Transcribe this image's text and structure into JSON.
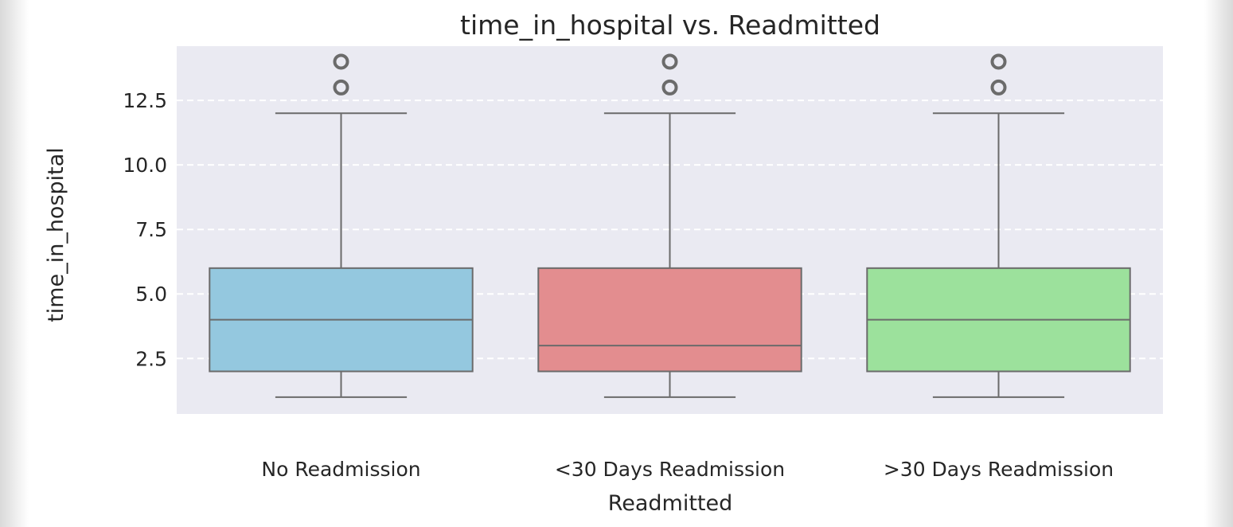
{
  "chart_data": {
    "type": "box",
    "title": "time_in_hospital vs. Readmitted",
    "xlabel": "Readmitted",
    "ylabel": "time_in_hospital",
    "ylim": [
      0.35,
      14.6
    ],
    "yticks": [
      2.5,
      5.0,
      7.5,
      10.0,
      12.5
    ],
    "ytick_labels": [
      "2.5",
      "5.0",
      "7.5",
      "10.0",
      "12.5"
    ],
    "grid": true,
    "background": "#eaeaf2",
    "categories": [
      "No Readmission",
      "<30 Days Readmission",
      ">30 Days Readmission"
    ],
    "boxes": [
      {
        "category": "No Readmission",
        "min": 1,
        "q1": 2,
        "median": 4,
        "q3": 6,
        "max": 12,
        "outliers": [
          13,
          14
        ],
        "color": "#94c8df"
      },
      {
        "category": "<30 Days Readmission",
        "min": 1,
        "q1": 2,
        "median": 3,
        "q3": 6,
        "max": 12,
        "outliers": [
          13,
          14
        ],
        "color": "#e38d8f"
      },
      {
        "category": ">30 Days Readmission",
        "min": 1,
        "q1": 2,
        "median": 4,
        "q3": 6,
        "max": 12,
        "outliers": [
          13,
          14
        ],
        "color": "#9ce19c"
      }
    ],
    "colors": {
      "line": "#6b6b6b",
      "grid": "#ffffff",
      "text": "#262626"
    }
  }
}
